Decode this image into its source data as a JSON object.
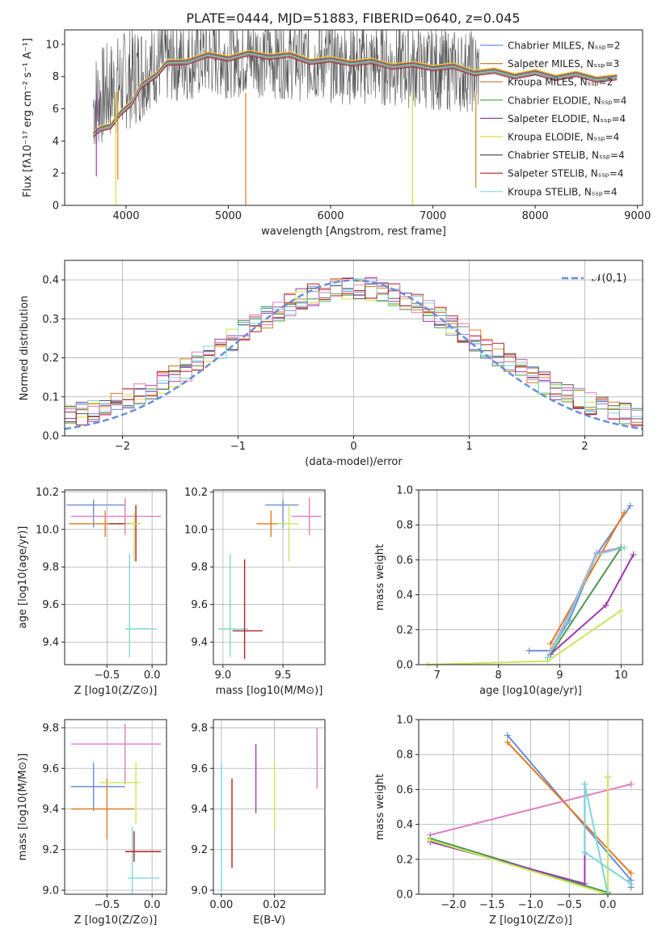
{
  "title": "PLATE=0444, MJD=51883, FIBERID=0640, z=0.045",
  "colors": [
    "#6a8fd9",
    "#e07b1e",
    "#c87a2a",
    "#4a9a4a",
    "#9a3cb0",
    "#d9df3a",
    "#555555",
    "#b22222",
    "#7fd6d8",
    "#e07fbf",
    "#c8e85a"
  ],
  "chart_data": [
    {
      "id": "spectrum",
      "type": "line",
      "xlabel": "wavelength [Angstrom, rest frame]",
      "ylabel": "Flux [fλ10⁻¹⁷ erg cm⁻² s⁻¹ A⁻¹]",
      "xlim": [
        3400,
        9050
      ],
      "ylim": [
        0,
        10.9
      ],
      "xticks": [
        4000,
        5000,
        6000,
        7000,
        8000,
        9000
      ],
      "yticks": [
        0,
        2,
        4,
        6,
        8,
        10
      ],
      "legend_position": "upper-right",
      "series": [
        {
          "name": "Chabrier MILES, N_SSP=2"
        },
        {
          "name": "Salpeter MILES, N_SSP=3"
        },
        {
          "name": "Kroupa MILES, N_SSP=2"
        },
        {
          "name": "Chabrier ELODIE, N_SSP=4"
        },
        {
          "name": "Salpeter ELODIE, N_SSP=4"
        },
        {
          "name": "Kroupa ELODIE, N_SSP=4"
        },
        {
          "name": "Chabrier STELIB, N_SSP=4"
        },
        {
          "name": "Salpeter STELIB, N_SSP=4"
        },
        {
          "name": "Kroupa STELIB, N_SSP=4"
        }
      ],
      "model_x": [
        3680,
        3750,
        3850,
        3950,
        4050,
        4150,
        4300,
        4400,
        4600,
        4800,
        5000,
        5200,
        5400,
        5600,
        5800,
        6000,
        6200,
        6400,
        6600,
        6800,
        7000,
        7200,
        7400,
        7600,
        7800,
        8000,
        8200,
        8400,
        8600,
        8800
      ],
      "model_y": [
        4.5,
        4.6,
        5.0,
        5.6,
        6.4,
        7.3,
        8.2,
        8.7,
        9.0,
        9.2,
        9.2,
        9.3,
        9.3,
        9.2,
        9.0,
        8.9,
        8.9,
        8.8,
        8.7,
        8.6,
        8.6,
        8.5,
        8.3,
        8.2,
        8.1,
        8.1,
        8.0,
        8.0,
        7.9,
        7.8
      ],
      "data_x": [
        3650,
        3700,
        4000,
        4300,
        4800,
        5300,
        5800,
        6300,
        6800,
        7200,
        7450
      ],
      "data_y": [
        5.6,
        6.5,
        7.8,
        8.8,
        9.2,
        9.3,
        9.0,
        8.8,
        8.6,
        8.4,
        8.3
      ]
    },
    {
      "id": "residuals",
      "type": "line",
      "xlabel": "(data-model)/error",
      "ylabel": "Normed distribution",
      "xlim": [
        -2.5,
        2.5
      ],
      "ylim": [
        0,
        0.45
      ],
      "xticks": [
        -2,
        -1,
        0,
        1,
        2
      ],
      "yticks": [
        0,
        0.1,
        0.2,
        0.3,
        0.4
      ],
      "legend": "𝒩(0,1)",
      "legend_position": "upper-right",
      "grid": true
    },
    {
      "id": "age_vs_Z",
      "type": "scatter",
      "xlabel": "Z [log10(Z/Z⊙)]",
      "ylabel": "age  [log10(age/yr)]",
      "xlim": [
        -0.97,
        0.16
      ],
      "ylim": [
        9.28,
        10.21
      ],
      "xticks": [
        -0.5,
        0.0
      ],
      "yticks": [
        9.4,
        9.6,
        9.8,
        10.0,
        10.2
      ],
      "grid": true,
      "points": [
        {
          "x": -0.65,
          "y": 10.13,
          "xerr": [
            0.3,
            0.35
          ],
          "yerr": [
            0.12,
            0.03
          ]
        },
        {
          "x": -0.52,
          "y": 10.03,
          "xerr": [
            0.4,
            0.3
          ],
          "yerr": [
            0.07,
            0.07
          ]
        },
        {
          "x": -0.3,
          "y": 10.07,
          "xerr": [
            0.6,
            0.4
          ],
          "yerr": [
            0.1,
            0.1
          ]
        },
        {
          "x": -0.25,
          "y": 9.47,
          "xerr": [
            0.05,
            0.3
          ],
          "yerr": [
            0.15,
            0.4
          ]
        },
        {
          "x": -0.18,
          "y": 10.03,
          "xerr": [
            0.3,
            0.05
          ],
          "yerr": [
            0.2,
            0.1
          ]
        },
        {
          "x": -0.2,
          "y": 10.03,
          "xerr": [
            0.1,
            0.07
          ],
          "yerr": [
            0.2,
            0.06
          ]
        }
      ]
    },
    {
      "id": "age_vs_mass",
      "type": "scatter",
      "xlabel": "mass [log10(M/M⊙)]",
      "ylabel": "",
      "xlim": [
        8.92,
        9.85
      ],
      "ylim": [
        9.28,
        10.21
      ],
      "xticks": [
        9.0,
        9.5
      ],
      "yticks": [
        9.4,
        9.6,
        9.8,
        10.0,
        10.2
      ],
      "grid": true,
      "points": [
        {
          "x": 9.5,
          "y": 10.13,
          "xerr": [
            0.15,
            0.13
          ],
          "yerr": [
            0.12,
            0.03
          ]
        },
        {
          "x": 9.4,
          "y": 10.03,
          "xerr": [
            0.12,
            0.12
          ],
          "yerr": [
            0.07,
            0.07
          ]
        },
        {
          "x": 9.72,
          "y": 10.07,
          "xerr": [
            0.15,
            0.1
          ],
          "yerr": [
            0.1,
            0.1
          ]
        },
        {
          "x": 9.06,
          "y": 9.47,
          "xerr": [
            0.1,
            0.15
          ],
          "yerr": [
            0.15,
            0.4
          ]
        },
        {
          "x": 9.18,
          "y": 9.46,
          "xerr": [
            0.1,
            0.15
          ],
          "yerr": [
            0.15,
            0.38
          ]
        },
        {
          "x": 9.55,
          "y": 10.03,
          "xerr": [
            0.1,
            0.08
          ],
          "yerr": [
            0.2,
            0.1
          ]
        }
      ]
    },
    {
      "id": "cumulative_age",
      "type": "line",
      "xlabel": "age  [log10(age/yr)]",
      "ylabel": "mass weight",
      "xlim": [
        6.7,
        10.35
      ],
      "ylim": [
        0,
        1.0
      ],
      "xticks": [
        7,
        8,
        9,
        10
      ],
      "yticks": [
        0.0,
        0.2,
        0.4,
        0.6,
        0.8,
        1.0
      ],
      "grid": true,
      "series": [
        {
          "x": [
            8.5,
            8.85,
            9.15,
            9.6,
            10.15
          ],
          "y": [
            0.08,
            0.08,
            0.25,
            0.63,
            0.91
          ]
        },
        {
          "x": [
            8.85,
            10.05
          ],
          "y": [
            0.12,
            0.87
          ]
        },
        {
          "x": [
            8.85,
            9.1,
            9.6,
            10.0
          ],
          "y": [
            0.08,
            0.25,
            0.64,
            0.67
          ]
        },
        {
          "x": [
            8.85,
            10.0
          ],
          "y": [
            0.06,
            0.67
          ]
        },
        {
          "x": [
            8.85,
            9.75,
            10.2
          ],
          "y": [
            0.06,
            0.34,
            0.63
          ]
        },
        {
          "x": [
            6.85,
            8.8,
            10.0
          ],
          "y": [
            0.0,
            0.02,
            0.31
          ]
        },
        {
          "x": [
            8.8,
            9.1,
            9.6,
            10.05
          ],
          "y": [
            0.04,
            0.24,
            0.63,
            0.67
          ]
        }
      ]
    },
    {
      "id": "mass_vs_Z",
      "type": "scatter",
      "xlabel": "Z [log10(Z/Z⊙)]",
      "ylabel": "mass [log10(M/M⊙)]",
      "xlim": [
        -0.97,
        0.16
      ],
      "ylim": [
        8.98,
        9.84
      ],
      "xticks": [
        -0.5,
        0.0
      ],
      "yticks": [
        9.0,
        9.2,
        9.4,
        9.6,
        9.8
      ],
      "grid": true,
      "points": [
        {
          "x": -0.65,
          "y": 9.51,
          "xerr": [
            0.25,
            0.35
          ],
          "yerr": [
            0.12,
            0.12
          ]
        },
        {
          "x": -0.5,
          "y": 9.4,
          "xerr": [
            0.4,
            0.3
          ],
          "yerr": [
            0.15,
            0.15
          ]
        },
        {
          "x": -0.3,
          "y": 9.72,
          "xerr": [
            0.6,
            0.4
          ],
          "yerr": [
            0.2,
            0.1
          ]
        },
        {
          "x": -0.22,
          "y": 9.06,
          "xerr": [
            0.05,
            0.3
          ],
          "yerr": [
            0.08,
            0.25
          ]
        },
        {
          "x": -0.2,
          "y": 9.19,
          "xerr": [
            0.1,
            0.3
          ],
          "yerr": [
            0.05,
            0.1
          ]
        },
        {
          "x": -0.18,
          "y": 9.53,
          "xerr": [
            0.4,
            0.05
          ],
          "yerr": [
            0.2,
            0.1
          ]
        }
      ]
    },
    {
      "id": "mass_vs_EBV",
      "type": "scatter",
      "xlabel": "E(B-V)",
      "ylabel": "",
      "xlim": [
        -0.003,
        0.039
      ],
      "ylim": [
        8.98,
        9.84
      ],
      "xticks": [
        0.0,
        0.02
      ],
      "yticks": [
        9.0,
        9.2,
        9.4,
        9.6,
        9.8
      ],
      "grid": true,
      "segments": [
        [
          0.0,
          9.0,
          9.63
        ],
        [
          0.004,
          9.11,
          9.55
        ],
        [
          0.013,
          9.38,
          9.72
        ],
        [
          0.02,
          9.3,
          9.64
        ],
        [
          0.036,
          9.5,
          9.8
        ]
      ]
    },
    {
      "id": "cumulative_Z",
      "type": "line",
      "xlabel": "Z [log10(Z/Z⊙)]",
      "ylabel": "mass weight",
      "xlim": [
        -2.45,
        0.45
      ],
      "ylim": [
        0,
        1.0
      ],
      "xticks": [
        -2.0,
        -1.5,
        -1.0,
        -0.5,
        0.0
      ],
      "yticks": [
        0.0,
        0.2,
        0.4,
        0.6,
        0.8,
        1.0
      ],
      "grid": true,
      "series": [
        {
          "x": [
            -1.3,
            0.3,
            0.3
          ],
          "y": [
            0.91,
            0.08,
            0.04
          ]
        },
        {
          "x": [
            -1.3,
            0.3
          ],
          "y": [
            0.87,
            0.12
          ]
        },
        {
          "x": [
            -2.3,
            0.3,
            0.3
          ],
          "y": [
            0.34,
            0.63,
            0.63
          ]
        },
        {
          "x": [
            -2.3,
            0.0,
            0.0
          ],
          "y": [
            0.32,
            0.01,
            0.67
          ]
        },
        {
          "x": [
            -2.3,
            -0.3,
            -0.3
          ],
          "y": [
            0.3,
            0.06,
            0.63
          ]
        },
        {
          "x": [
            -2.3,
            0.0,
            0.0
          ],
          "y": [
            0.31,
            0.0,
            0.67
          ]
        },
        {
          "x": [
            0.0,
            -0.3,
            -0.3,
            0.3
          ],
          "y": [
            0.0,
            0.63,
            0.24,
            0.06
          ]
        }
      ]
    }
  ]
}
